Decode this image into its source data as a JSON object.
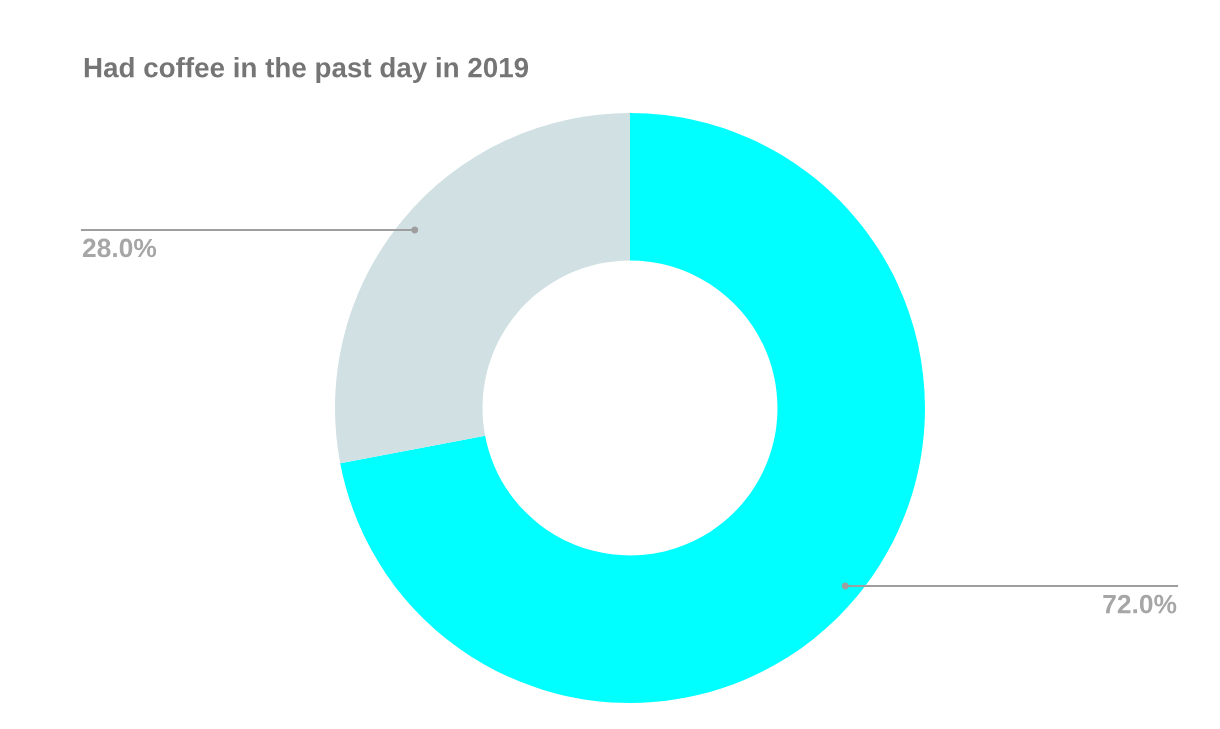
{
  "chart_data": {
    "type": "donut",
    "title": "Had coffee in the past day in 2019",
    "categories": [
      null,
      null
    ],
    "values": [
      72.0,
      28.0
    ],
    "colors": [
      "#00ffff",
      "#d0e0e3"
    ],
    "value_labels": [
      "72.0%",
      "28.0%"
    ],
    "legend": false
  }
}
